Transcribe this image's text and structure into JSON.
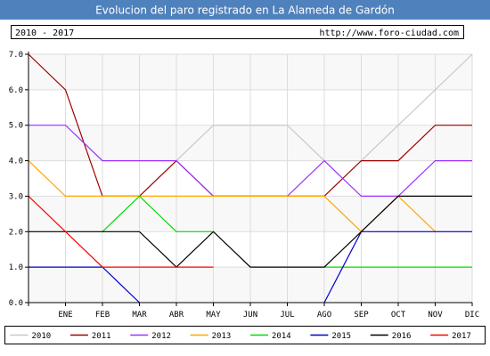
{
  "header": {
    "title": "Evolucion del paro registrado en La Alameda de Gardón",
    "period": "2010 - 2017",
    "site_url": "http://www.foro-ciudad.com"
  },
  "chart_data": {
    "type": "line",
    "title": "Evolucion del paro registrado en La Alameda de Gardón",
    "xlabel": "",
    "ylabel": "",
    "x_ticks": [
      "",
      "ENE",
      "FEB",
      "MAR",
      "ABR",
      "MAY",
      "JUN",
      "JUL",
      "AGO",
      "SEP",
      "OCT",
      "NOV",
      "DIC"
    ],
    "y_ticks": [
      "0.0",
      "1.0",
      "2.0",
      "3.0",
      "4.0",
      "5.0",
      "6.0",
      "7.0"
    ],
    "ylim": [
      0,
      7
    ],
    "grid": true,
    "legend_position": "bottom",
    "series": [
      {
        "name": "2010",
        "color": "#c8c8c8",
        "values": [
          null,
          null,
          null,
          3,
          4,
          5,
          5,
          5,
          4,
          4,
          5,
          6,
          7
        ]
      },
      {
        "name": "2011",
        "color": "#a00000",
        "values": [
          7,
          6,
          3,
          3,
          4,
          3,
          3,
          3,
          3,
          4,
          4,
          5,
          5
        ]
      },
      {
        "name": "2012",
        "color": "#9b30ff",
        "values": [
          5,
          5,
          4,
          4,
          4,
          3,
          3,
          3,
          4,
          3,
          3,
          4,
          4
        ]
      },
      {
        "name": "2013",
        "color": "#ffa500",
        "values": [
          4,
          3,
          3,
          3,
          3,
          3,
          3,
          3,
          3,
          2,
          3,
          2,
          null
        ]
      },
      {
        "name": "2014",
        "color": "#00dd00",
        "values": [
          null,
          null,
          2,
          3,
          2,
          2,
          null,
          null,
          1,
          1,
          1,
          1,
          1
        ]
      },
      {
        "name": "2015",
        "color": "#0000cc",
        "values": [
          1,
          1,
          1,
          0,
          null,
          null,
          null,
          null,
          0,
          2,
          2,
          2,
          2
        ]
      },
      {
        "name": "2016",
        "color": "#000000",
        "values": [
          2,
          2,
          2,
          2,
          1,
          2,
          1,
          1,
          1,
          2,
          3,
          3,
          3
        ]
      },
      {
        "name": "2017",
        "color": "#ff0000",
        "values": [
          3,
          2,
          1,
          1,
          1,
          1,
          null,
          null,
          null,
          null,
          null,
          null,
          null
        ]
      }
    ]
  },
  "colors": {
    "title_bar": "#4f81bd",
    "plot_bg": "#f8f8f8",
    "grid": "#dddddd",
    "band": "#ffffff"
  }
}
